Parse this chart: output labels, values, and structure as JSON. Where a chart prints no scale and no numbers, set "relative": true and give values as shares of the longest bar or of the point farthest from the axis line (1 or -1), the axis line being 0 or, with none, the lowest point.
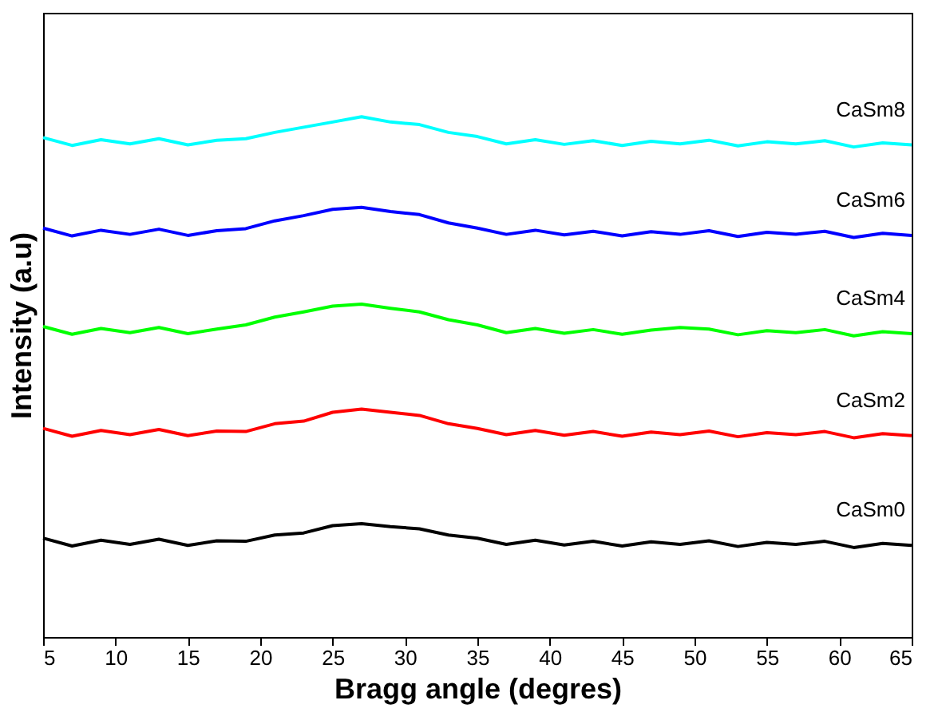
{
  "chart_data": {
    "type": "line",
    "relative": true,
    "xlabel": "Bragg angle (degres)",
    "ylabel": "Intensity (a.u)",
    "x": [
      5,
      7,
      9,
      11,
      13,
      15,
      17,
      19,
      21,
      23,
      25,
      27,
      29,
      31,
      33,
      35,
      37,
      39,
      41,
      43,
      45,
      47,
      49,
      51,
      53,
      55,
      57,
      59,
      61,
      63,
      65
    ],
    "xlim": [
      5,
      65
    ],
    "xticks": [
      5,
      10,
      15,
      20,
      25,
      30,
      35,
      40,
      45,
      50,
      55,
      60,
      65
    ],
    "marker": "none",
    "line_style": "solid",
    "series": [
      {
        "name": "CaSm0",
        "color": "#000000",
        "values": [
          0.19,
          0.175,
          0.186,
          0.178,
          0.188,
          0.176,
          0.185,
          0.184,
          0.196,
          0.2,
          0.214,
          0.218,
          0.212,
          0.208,
          0.196,
          0.19,
          0.178,
          0.186,
          0.177,
          0.184,
          0.175,
          0.183,
          0.178,
          0.185,
          0.174,
          0.182,
          0.178,
          0.184,
          0.172,
          0.18,
          0.176
        ]
      },
      {
        "name": "CaSm2",
        "color": "#ff0000",
        "values": [
          0.401,
          0.386,
          0.397,
          0.389,
          0.399,
          0.387,
          0.396,
          0.395,
          0.41,
          0.415,
          0.432,
          0.438,
          0.432,
          0.426,
          0.41,
          0.401,
          0.389,
          0.397,
          0.388,
          0.395,
          0.386,
          0.394,
          0.389,
          0.396,
          0.385,
          0.393,
          0.389,
          0.395,
          0.383,
          0.391,
          0.387
        ]
      },
      {
        "name": "CaSm4",
        "color": "#00ff00",
        "values": [
          0.597,
          0.582,
          0.593,
          0.585,
          0.595,
          0.583,
          0.592,
          0.6,
          0.615,
          0.625,
          0.636,
          0.64,
          0.632,
          0.625,
          0.61,
          0.6,
          0.585,
          0.593,
          0.584,
          0.591,
          0.582,
          0.59,
          0.595,
          0.592,
          0.581,
          0.589,
          0.585,
          0.591,
          0.579,
          0.587,
          0.583
        ]
      },
      {
        "name": "CaSm6",
        "color": "#0000ff",
        "values": [
          0.786,
          0.771,
          0.782,
          0.774,
          0.784,
          0.772,
          0.781,
          0.785,
          0.8,
          0.81,
          0.822,
          0.826,
          0.818,
          0.812,
          0.796,
          0.786,
          0.774,
          0.782,
          0.773,
          0.78,
          0.771,
          0.779,
          0.774,
          0.781,
          0.77,
          0.778,
          0.774,
          0.78,
          0.768,
          0.776,
          0.772
        ]
      },
      {
        "name": "CaSm8",
        "color": "#00ffff",
        "values": [
          0.96,
          0.945,
          0.956,
          0.948,
          0.958,
          0.946,
          0.955,
          0.958,
          0.97,
          0.98,
          0.99,
          1.0,
          0.99,
          0.985,
          0.97,
          0.962,
          0.948,
          0.956,
          0.947,
          0.954,
          0.945,
          0.953,
          0.948,
          0.955,
          0.944,
          0.952,
          0.948,
          0.954,
          0.942,
          0.95,
          0.946
        ]
      }
    ]
  }
}
